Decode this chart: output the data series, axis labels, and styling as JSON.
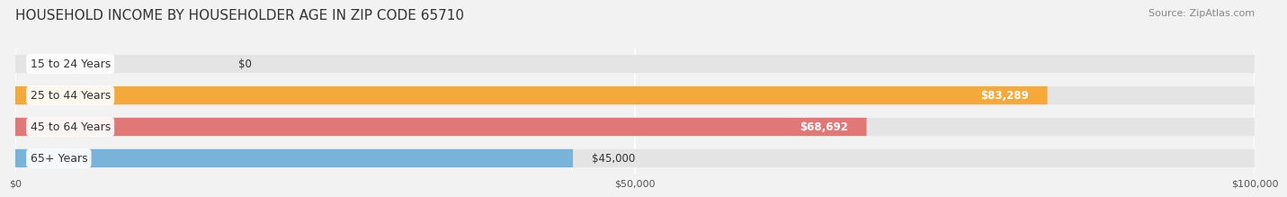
{
  "title": "HOUSEHOLD INCOME BY HOUSEHOLDER AGE IN ZIP CODE 65710",
  "source": "Source: ZipAtlas.com",
  "categories": [
    "15 to 24 Years",
    "25 to 44 Years",
    "45 to 64 Years",
    "65+ Years"
  ],
  "values": [
    0,
    83289,
    68692,
    45000
  ],
  "bar_colors": [
    "#f2a0b0",
    "#f5a93b",
    "#e07878",
    "#7ab3d9"
  ],
  "background_color": "#f2f2f2",
  "bar_bg_color": "#e4e4e4",
  "xlim": [
    0,
    100000
  ],
  "xticks": [
    0,
    50000,
    100000
  ],
  "xtick_labels": [
    "$0",
    "$50,000",
    "$100,000"
  ],
  "value_labels": [
    "$0",
    "$83,289",
    "$68,692",
    "$45,000"
  ],
  "title_fontsize": 11,
  "source_fontsize": 8,
  "label_fontsize": 9,
  "value_fontsize": 8.5,
  "value_label_colors": [
    "#333333",
    "#ffffff",
    "#ffffff",
    "#333333"
  ]
}
